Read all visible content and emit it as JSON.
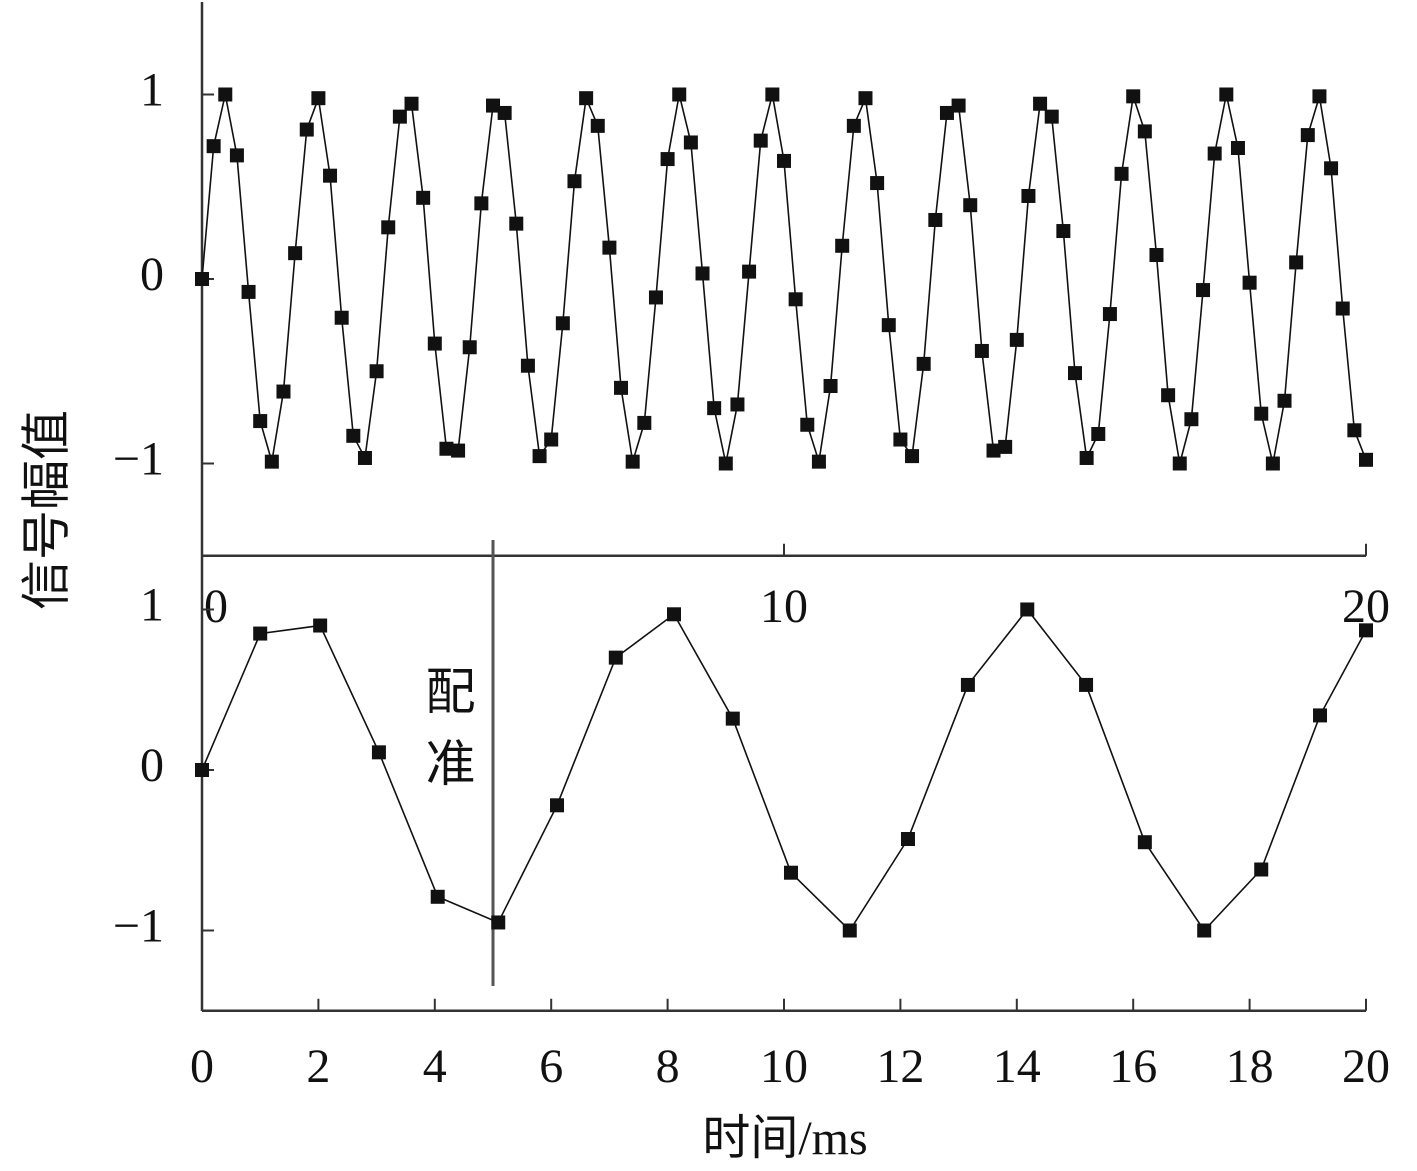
{
  "chart_data": [
    {
      "type": "line",
      "ylabel": "信号幅值",
      "x": [
        0,
        0.2,
        0.4,
        0.6,
        0.8,
        1,
        1.2,
        1.4,
        1.6,
        1.8,
        2,
        2.2,
        2.4,
        2.6,
        2.8,
        3,
        3.2,
        3.4,
        3.6,
        3.8,
        4,
        4.2,
        4.4,
        4.6,
        4.8,
        5,
        5.2,
        5.4,
        5.6,
        5.8,
        6,
        6.2,
        6.4,
        6.6,
        6.8,
        7,
        7.2,
        7.4,
        7.6,
        7.8,
        8,
        8.2,
        8.4,
        8.6,
        8.8,
        9,
        9.2,
        9.4,
        9.6,
        9.8,
        10,
        10.2,
        10.4,
        10.6,
        10.8,
        11,
        11.2,
        11.4,
        11.6,
        11.8,
        12,
        12.2,
        12.4,
        12.6,
        12.8,
        13,
        13.2,
        13.4,
        13.6,
        13.8,
        14,
        14.2,
        14.4,
        14.6,
        14.8,
        15,
        15.2,
        15.4,
        15.6,
        15.8,
        16,
        16.2,
        16.4,
        16.6,
        16.8,
        17,
        17.2,
        17.4,
        17.6,
        17.8,
        18,
        18.2,
        18.4,
        18.6,
        18.8,
        19,
        19.2,
        19.4,
        19.6,
        19.8,
        20
      ],
      "series": [
        {
          "color": "#111111",
          "values": [
            0,
            0.72,
            1.0,
            0.67,
            -0.07,
            -0.77,
            -0.99,
            -0.61,
            0.14,
            0.81,
            0.98,
            0.56,
            -0.21,
            -0.85,
            -0.97,
            -0.5,
            0.28,
            0.88,
            0.95,
            0.44,
            -0.35,
            -0.92,
            -0.93,
            -0.37,
            0.41,
            0.94,
            0.9,
            0.3,
            -0.47,
            -0.96,
            -0.87,
            -0.24,
            0.53,
            0.98,
            0.83,
            0.17,
            -0.59,
            -0.99,
            -0.78,
            -0.1,
            0.65,
            1.0,
            0.74,
            0.03,
            -0.7,
            -1.0,
            -0.68,
            0.04,
            0.75,
            1.0,
            0.64,
            -0.11,
            -0.79,
            -0.99,
            -0.58,
            0.18,
            0.83,
            0.98,
            0.52,
            -0.25,
            -0.87,
            -0.96,
            -0.46,
            0.32,
            0.9,
            0.94,
            0.4,
            -0.39,
            -0.93,
            -0.91,
            -0.33,
            0.45,
            0.95,
            0.88,
            0.26,
            -0.51,
            -0.97,
            -0.84,
            -0.19,
            0.57,
            0.99,
            0.8,
            0.13,
            -0.63,
            -1.0,
            -0.76,
            -0.06,
            0.68,
            1.0,
            0.71,
            -0.02,
            -0.73,
            -1.0,
            -0.66,
            0.09,
            0.78,
            0.99,
            0.6,
            -0.16,
            -0.82,
            -0.98
          ]
        }
      ],
      "xlim": [
        0,
        20
      ],
      "xticks": [
        0,
        10,
        20
      ],
      "ylim": [
        -1.5,
        1.5
      ],
      "yticks": [
        {
          "value": -1,
          "label": "−1"
        },
        0,
        1
      ]
    },
    {
      "type": "line",
      "xlabel": "时间/ms",
      "x": [
        0,
        1.0,
        2.03,
        3.04,
        4.05,
        5.09,
        6.1,
        7.11,
        8.11,
        9.12,
        10.12,
        11.13,
        12.13,
        13.16,
        14.18,
        15.19,
        16.2,
        17.22,
        18.2,
        19.21,
        20
      ],
      "series": [
        {
          "color": "#111111",
          "values": [
            0,
            0.85,
            0.9,
            0.11,
            -0.79,
            -0.95,
            -0.22,
            0.7,
            0.97,
            0.32,
            -0.64,
            -1.0,
            -0.43,
            0.53,
            1.0,
            0.53,
            -0.45,
            -1.0,
            -0.62,
            0.34,
            0.87
          ]
        }
      ],
      "xlim": [
        0,
        20
      ],
      "xticks": [
        0,
        2,
        4,
        6,
        8,
        10,
        12,
        14,
        16,
        18,
        20
      ],
      "ylim": [
        -1.5,
        1.35
      ],
      "yticks": [
        {
          "value": -1,
          "label": "−1"
        },
        0,
        1
      ],
      "annotations": [
        {
          "text": "配准",
          "x": 5
        }
      ]
    }
  ]
}
